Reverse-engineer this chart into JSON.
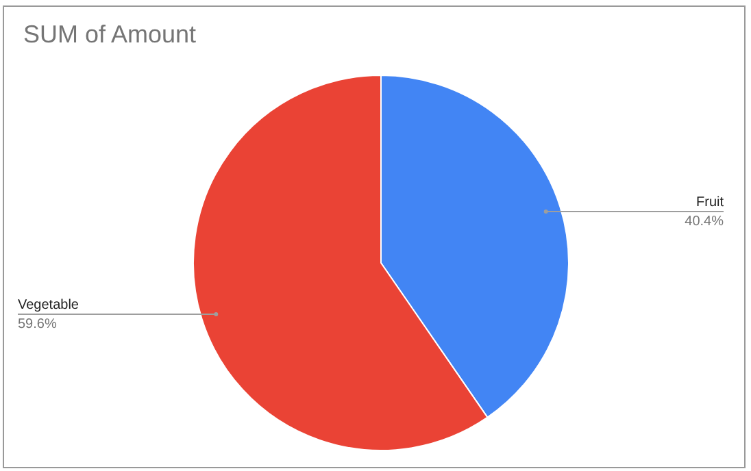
{
  "chart_data": {
    "type": "pie",
    "title": "SUM of Amount",
    "categories": [
      "Fruit",
      "Vegetable"
    ],
    "values": [
      40.4,
      59.6
    ],
    "colors": [
      "#4285f4",
      "#ea4335"
    ],
    "value_labels": [
      "40.4%",
      "59.6%"
    ],
    "legend": false
  }
}
